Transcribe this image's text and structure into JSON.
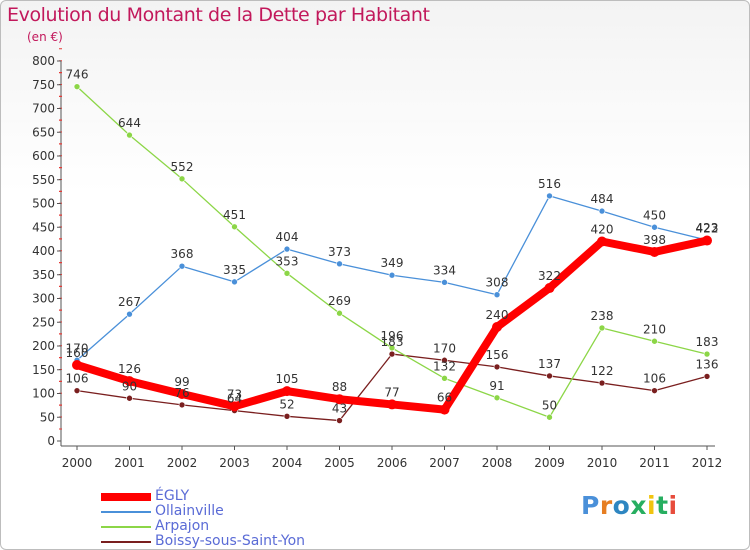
{
  "chart_data": {
    "type": "line",
    "title": "Evolution du Montant de la Dette par Habitant",
    "subtitle": "(en €)",
    "categories": [
      "2000",
      "2001",
      "2002",
      "2003",
      "2004",
      "2005",
      "2006",
      "2007",
      "2008",
      "2009",
      "2010",
      "2011",
      "2012"
    ],
    "ylim": [
      0,
      800
    ],
    "yticks": [
      0,
      50,
      100,
      150,
      200,
      250,
      300,
      350,
      400,
      450,
      500,
      550,
      600,
      650,
      700,
      750,
      800
    ],
    "grid": false,
    "legend_position": "bottom-left",
    "series": [
      {
        "name": "ÉGLY",
        "color": "#ff0000",
        "values": [
          160,
          126,
          99,
          73,
          105,
          88,
          77,
          66,
          240,
          322,
          420,
          398,
          422
        ]
      },
      {
        "name": "Ollainville",
        "color": "#4a90d9",
        "values": [
          170,
          267,
          368,
          335,
          404,
          373,
          349,
          334,
          308,
          516,
          484,
          450,
          423
        ]
      },
      {
        "name": "Arpajon",
        "color": "#8cd647",
        "values": [
          746,
          644,
          552,
          451,
          353,
          269,
          196,
          132,
          91,
          50,
          238,
          210,
          183
        ]
      },
      {
        "name": "Boissy-sous-Saint-Yon",
        "color": "#7a1f1f",
        "values": [
          106,
          90,
          76,
          64,
          52,
          43,
          183,
          170,
          156,
          137,
          122,
          106,
          136
        ]
      }
    ]
  },
  "branding": {
    "logo_text": "Proxiti",
    "letter_colors": [
      "#4a90d9",
      "#e67e22",
      "#2e86c1",
      "#27ae60",
      "#f1c40f",
      "#27ae60",
      "#e74c3c"
    ]
  }
}
